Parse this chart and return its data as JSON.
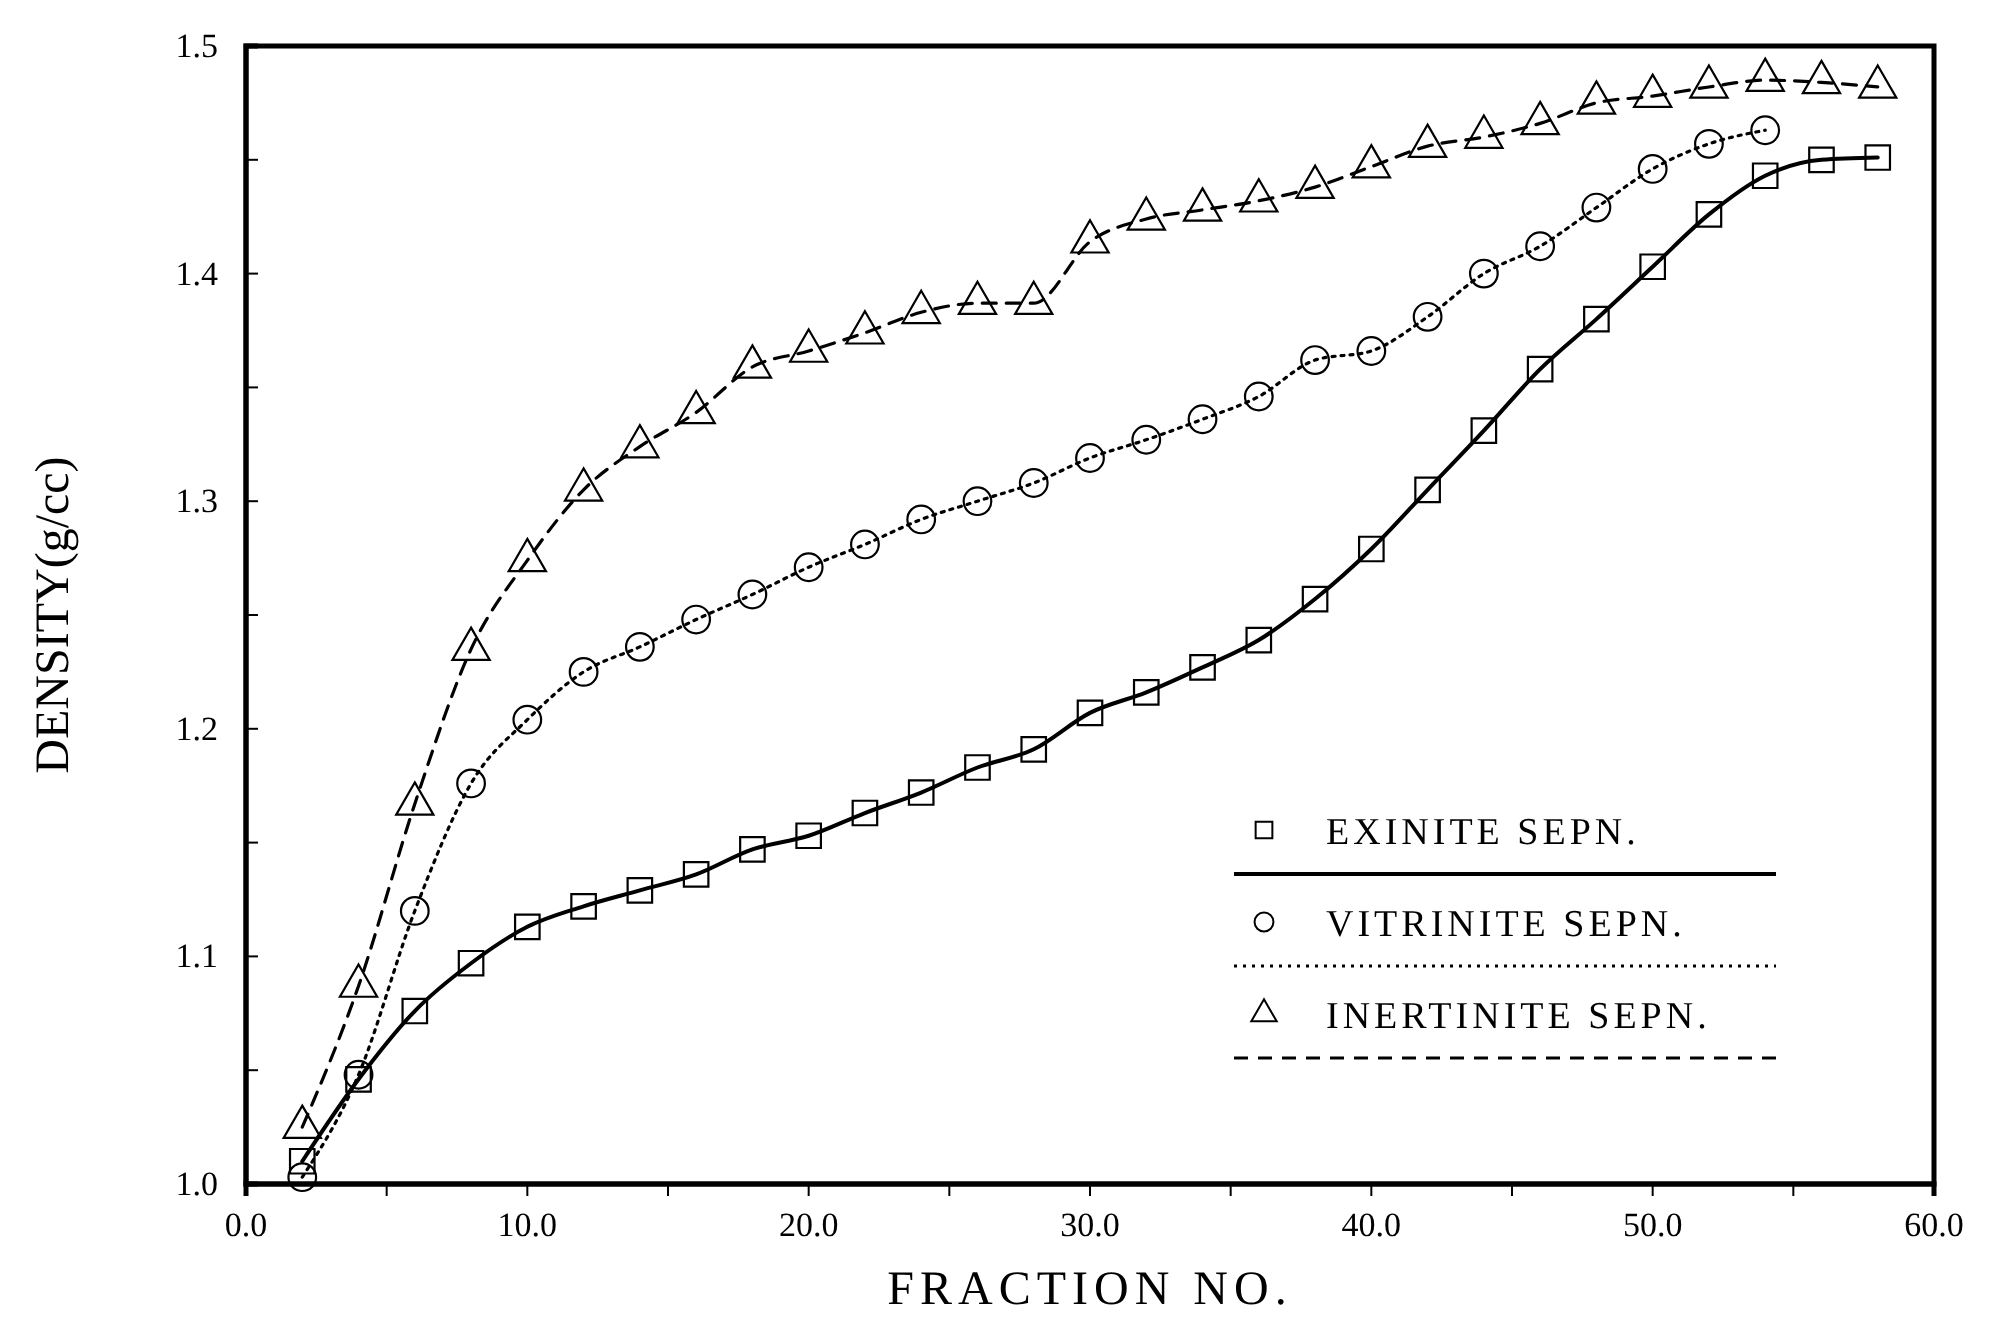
{
  "chart_data": {
    "type": "line",
    "xlabel": "FRACTION NO.",
    "ylabel": "DENSITY(g/cc)",
    "xlim": [
      0,
      60
    ],
    "ylim": [
      1.0,
      1.5
    ],
    "xticks": [
      {
        "value": 0,
        "label": "0.0"
      },
      {
        "value": 5,
        "label": null
      },
      {
        "value": 10,
        "label": "10.0"
      },
      {
        "value": 15,
        "label": null
      },
      {
        "value": 20,
        "label": "20.0"
      },
      {
        "value": 25,
        "label": null
      },
      {
        "value": 30,
        "label": "30.0"
      },
      {
        "value": 35,
        "label": null
      },
      {
        "value": 40,
        "label": "40.0"
      },
      {
        "value": 45,
        "label": null
      },
      {
        "value": 50,
        "label": "50.0"
      },
      {
        "value": 55,
        "label": null
      },
      {
        "value": 60,
        "label": "60.0"
      }
    ],
    "yticks": [
      {
        "value": 1.0,
        "label": "1.0"
      },
      {
        "value": 1.05,
        "label": null
      },
      {
        "value": 1.1,
        "label": "1.1"
      },
      {
        "value": 1.15,
        "label": null
      },
      {
        "value": 1.2,
        "label": "1.2"
      },
      {
        "value": 1.25,
        "label": null
      },
      {
        "value": 1.3,
        "label": "1.3"
      },
      {
        "value": 1.35,
        "label": null
      },
      {
        "value": 1.4,
        "label": "1.4"
      },
      {
        "value": 1.45,
        "label": null
      },
      {
        "value": 1.5,
        "label": "1.5"
      }
    ],
    "grid": false,
    "legend": "bottom right",
    "series": [
      {
        "name": "EXINITE SEPN.",
        "color": "#000000",
        "marker": "square",
        "line_style": "solid",
        "x": [
          2,
          4,
          6,
          8,
          10,
          12,
          14,
          16,
          18,
          20,
          22,
          24,
          26,
          28,
          30,
          32,
          34,
          36,
          38,
          40,
          42,
          44,
          46,
          48,
          50,
          52,
          54,
          56,
          58
        ],
        "values": [
          1.01,
          1.046,
          1.076,
          1.097,
          1.113,
          1.122,
          1.129,
          1.136,
          1.147,
          1.153,
          1.163,
          1.172,
          1.183,
          1.191,
          1.207,
          1.216,
          1.227,
          1.239,
          1.257,
          1.279,
          1.305,
          1.331,
          1.358,
          1.38,
          1.403,
          1.426,
          1.443,
          1.45,
          1.451
        ]
      },
      {
        "name": "VITRINITE SEPN.",
        "color": "#000000",
        "marker": "circle",
        "line_style": "dotted",
        "x": [
          2,
          4,
          6,
          8,
          10,
          12,
          14,
          16,
          18,
          20,
          22,
          24,
          26,
          28,
          30,
          32,
          34,
          36,
          38,
          40,
          42,
          44,
          46,
          48,
          50,
          52,
          54
        ],
        "values": [
          1.003,
          1.048,
          1.12,
          1.176,
          1.204,
          1.225,
          1.236,
          1.248,
          1.259,
          1.271,
          1.281,
          1.292,
          1.3,
          1.308,
          1.319,
          1.327,
          1.336,
          1.346,
          1.362,
          1.366,
          1.381,
          1.4,
          1.412,
          1.429,
          1.446,
          1.457,
          1.463
        ]
      },
      {
        "name": "INERTINITE SEPN.",
        "color": "#000000",
        "marker": "triangle",
        "line_style": "dashed",
        "x": [
          2,
          4,
          6,
          8,
          10,
          12,
          14,
          16,
          18,
          20,
          22,
          24,
          26,
          28,
          30,
          32,
          34,
          36,
          38,
          40,
          42,
          44,
          46,
          48,
          50,
          52,
          54,
          56,
          58
        ],
        "values": [
          1.025,
          1.087,
          1.167,
          1.235,
          1.274,
          1.305,
          1.324,
          1.339,
          1.359,
          1.366,
          1.374,
          1.383,
          1.387,
          1.387,
          1.414,
          1.424,
          1.428,
          1.432,
          1.438,
          1.447,
          1.456,
          1.46,
          1.466,
          1.475,
          1.478,
          1.482,
          1.485,
          1.484,
          1.482
        ]
      }
    ]
  }
}
